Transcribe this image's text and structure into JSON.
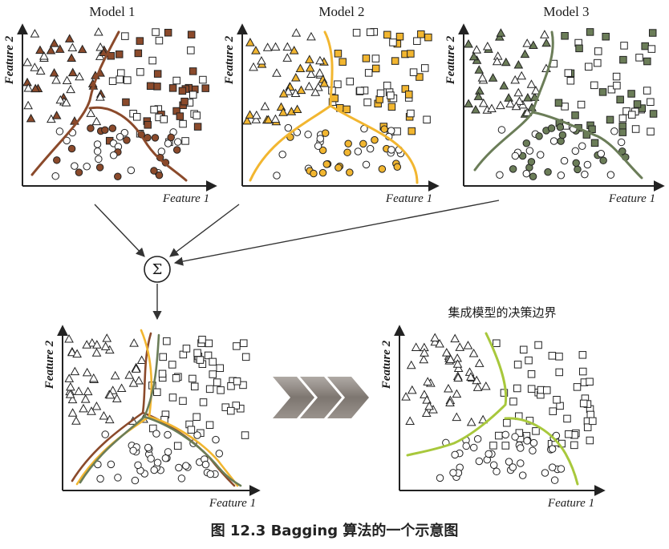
{
  "panels": {
    "model1": {
      "title": "Model 1",
      "xlabel": "Feature 1",
      "ylabel": "Feature 2",
      "color": "#8b4a2b"
    },
    "model2": {
      "title": "Model 2",
      "xlabel": "Feature 1",
      "ylabel": "Feature 2",
      "color": "#f2b630"
    },
    "model3": {
      "title": "Model 3",
      "xlabel": "Feature 1",
      "ylabel": "Feature 2",
      "color": "#6b7d58"
    },
    "combined": {
      "xlabel": "Feature 1",
      "ylabel": "Feature 2"
    },
    "ensemble": {
      "title": "集成模型的决策边界",
      "xlabel": "Feature 1",
      "ylabel": "Feature 2",
      "color": "#a8c83c"
    }
  },
  "aggregator": {
    "symbol": "Σ"
  },
  "arrow_color": "#8a8580",
  "caption": "图 12.3   Bagging 算法的一个示意图"
}
